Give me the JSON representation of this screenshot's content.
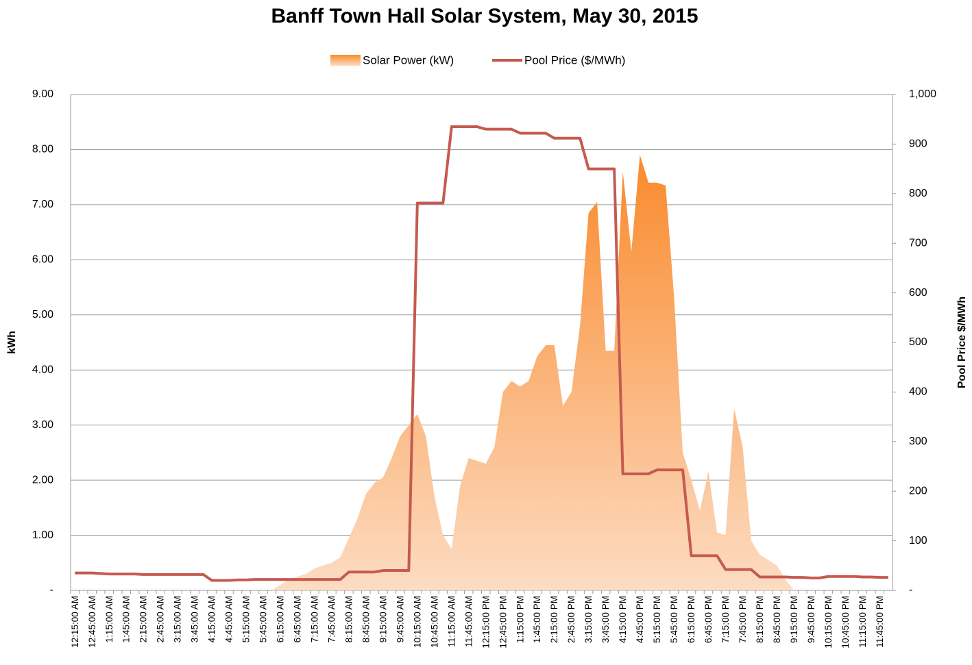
{
  "chart_data": {
    "type": "area-line",
    "title": "Banff Town Hall Solar System, May 30, 2015",
    "ylabel": "kWh",
    "y2label": "Pool Price $/MWh",
    "categories": [
      "12:15:00 AM",
      null,
      "12:45:00 AM",
      null,
      "1:15:00 AM",
      null,
      "1:45:00 AM",
      null,
      "2:15:00 AM",
      null,
      "2:45:00 AM",
      null,
      "3:15:00 AM",
      null,
      "3:45:00 AM",
      null,
      "4:15:00 AM",
      null,
      "4:45:00 AM",
      null,
      "5:15:00 AM",
      null,
      "5:45:00 AM",
      null,
      "6:15:00 AM",
      null,
      "6:45:00 AM",
      null,
      "7:15:00 AM",
      null,
      "7:45:00 AM",
      null,
      "8:15:00 AM",
      null,
      "8:45:00 AM",
      null,
      "9:15:00 AM",
      null,
      "9:45:00 AM",
      null,
      "10:15:00 AM",
      null,
      "10:45:00 AM",
      null,
      "11:15:00 AM",
      null,
      "11:45:00 AM",
      null,
      "12:15:00 PM",
      null,
      "12:45:00 PM",
      null,
      "1:15:00 PM",
      null,
      "1:45:00 PM",
      null,
      "2:15:00 PM",
      null,
      "2:45:00 PM",
      null,
      "3:15:00 PM",
      null,
      "3:45:00 PM",
      null,
      "4:15:00 PM",
      null,
      "4:45:00 PM",
      null,
      "5:15:00 PM",
      null,
      "5:45:00 PM",
      null,
      "6:15:00 PM",
      null,
      "6:45:00 PM",
      null,
      "7:15:00 PM",
      null,
      "7:45:00 PM",
      null,
      "8:15:00 PM",
      null,
      "8:45:00 PM",
      null,
      "9:15:00 PM",
      null,
      "9:45:00 PM",
      null,
      "10:15:00 PM",
      null,
      "10:45:00 PM",
      null,
      "11:15:00 PM",
      null,
      "11:45:00 PM",
      null
    ],
    "series": [
      {
        "name": "Solar Power (kW)",
        "kind": "area",
        "color": "#f98a2c",
        "color2": "#fcdcc3",
        "values": [
          0,
          0,
          0,
          0,
          0,
          0,
          0,
          0,
          0,
          0,
          0,
          0,
          0,
          0,
          0,
          0,
          0,
          0,
          0,
          0,
          0,
          0,
          0,
          0,
          0.1,
          0.2,
          0.25,
          0.3,
          0.4,
          0.45,
          0.5,
          0.6,
          0.95,
          1.3,
          1.75,
          1.95,
          2.05,
          2.4,
          2.8,
          3.0,
          3.2,
          2.8,
          1.7,
          1.0,
          0.75,
          1.9,
          2.4,
          2.35,
          2.3,
          2.6,
          3.6,
          3.8,
          3.7,
          3.8,
          4.25,
          4.45,
          4.45,
          3.35,
          3.6,
          4.8,
          6.85,
          7.05,
          4.35,
          4.35,
          7.6,
          6.15,
          7.9,
          7.4,
          7.4,
          7.35,
          5.3,
          2.5,
          2.0,
          1.45,
          2.15,
          1.05,
          1.0,
          3.3,
          2.6,
          0.9,
          0.65,
          0.55,
          0.45,
          0.2,
          0,
          0,
          0,
          0,
          0,
          0,
          0,
          0,
          0,
          0,
          0,
          0
        ]
      },
      {
        "name": "Pool Price ($/MWh)",
        "kind": "line",
        "axis": "y2",
        "color": "#c55a50",
        "values": [
          35,
          35,
          35,
          34,
          33,
          33,
          33,
          33,
          32,
          32,
          32,
          32,
          32,
          32,
          32,
          32,
          20,
          20,
          20,
          21,
          21,
          22,
          22,
          22,
          22,
          22,
          22,
          22,
          22,
          22,
          22,
          22,
          37,
          37,
          37,
          37,
          40,
          40,
          40,
          40,
          781,
          781,
          781,
          781,
          935,
          935,
          935,
          935,
          930,
          930,
          930,
          930,
          922,
          922,
          922,
          922,
          912,
          912,
          912,
          912,
          850,
          850,
          850,
          850,
          235,
          235,
          235,
          235,
          243,
          243,
          243,
          243,
          70,
          70,
          70,
          70,
          42,
          42,
          42,
          42,
          27,
          27,
          27,
          27,
          26,
          26,
          25,
          25,
          28,
          28,
          28,
          28,
          27,
          27,
          26,
          26
        ]
      }
    ],
    "ylim": [
      0,
      9
    ],
    "yticks": [
      {
        "value": 0,
        "label": "-"
      },
      {
        "value": 1,
        "label": "1.00"
      },
      {
        "value": 2,
        "label": "2.00"
      },
      {
        "value": 3,
        "label": "3.00"
      },
      {
        "value": 4,
        "label": "4.00"
      },
      {
        "value": 5,
        "label": "5.00"
      },
      {
        "value": 6,
        "label": "6.00"
      },
      {
        "value": 7,
        "label": "7.00"
      },
      {
        "value": 8,
        "label": "8.00"
      },
      {
        "value": 9,
        "label": "9.00"
      }
    ],
    "y2lim": [
      0,
      1000
    ],
    "y2ticks": [
      {
        "value": 0,
        "label": "-"
      },
      100,
      200,
      300,
      400,
      500,
      600,
      700,
      800,
      900,
      {
        "value": 1000,
        "label": "1,000"
      }
    ],
    "grid": true,
    "legend": "top"
  }
}
